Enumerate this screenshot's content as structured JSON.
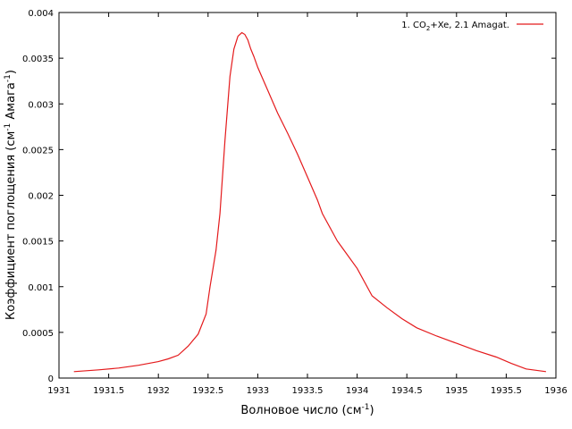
{
  "chart_data": {
    "type": "line",
    "title": "",
    "xlabel": "Волновое число (см",
    "xlabel_sup": "-1",
    "xlabel_end": ")",
    "ylabel_parts": [
      "Коэффициент поглощения (см",
      "-1",
      " Амага",
      "-1",
      ")"
    ],
    "xlim": [
      1931,
      1936
    ],
    "ylim": [
      0,
      0.004
    ],
    "x_ticks": [
      1931,
      1931.5,
      1932,
      1932.5,
      1933,
      1933.5,
      1934,
      1934.5,
      1935,
      1935.5,
      1936
    ],
    "x_tick_labels": [
      "1931",
      "1931.5",
      "1932",
      "1932.5",
      "1933",
      "1933.5",
      "1934",
      "1934.5",
      "1935",
      "1935.5",
      "1936"
    ],
    "y_ticks": [
      0,
      0.0005,
      0.001,
      0.0015,
      0.002,
      0.0025,
      0.003,
      0.0035,
      0.004
    ],
    "y_tick_labels": [
      "0",
      "0.0005",
      "0.001",
      "0.0015",
      "0.002",
      "0.0025",
      "0.003",
      "0.0035",
      "0.004"
    ],
    "grid": false,
    "legend_position": "top-right",
    "series": [
      {
        "name_parts": [
          "1. CO",
          "2",
          "+Xe, 2.1 Amagat."
        ],
        "color": "#e41a1c",
        "x": [
          1931.15,
          1931.4,
          1931.6,
          1931.8,
          1932.0,
          1932.1,
          1932.2,
          1932.3,
          1932.4,
          1932.48,
          1932.52,
          1932.58,
          1932.62,
          1932.67,
          1932.72,
          1932.76,
          1932.8,
          1932.84,
          1932.87,
          1932.9,
          1932.93,
          1932.96,
          1933.0,
          1933.1,
          1933.2,
          1933.3,
          1933.4,
          1933.5,
          1933.6,
          1933.65,
          1933.8,
          1934.0,
          1934.15,
          1934.3,
          1934.45,
          1934.6,
          1934.8,
          1935.0,
          1935.2,
          1935.4,
          1935.55,
          1935.7,
          1935.9
        ],
        "y": [
          7e-05,
          9e-05,
          0.00011,
          0.00014,
          0.00018,
          0.00021,
          0.00025,
          0.00035,
          0.00048,
          0.0007,
          0.001,
          0.0014,
          0.0018,
          0.0026,
          0.0033,
          0.0036,
          0.00374,
          0.00378,
          0.00376,
          0.0037,
          0.0036,
          0.00352,
          0.0034,
          0.00315,
          0.0029,
          0.00268,
          0.00245,
          0.0022,
          0.00195,
          0.0018,
          0.0015,
          0.0012,
          0.0009,
          0.00077,
          0.00065,
          0.00055,
          0.00046,
          0.00038,
          0.0003,
          0.00023,
          0.00016,
          0.0001,
          7e-05
        ]
      }
    ]
  }
}
